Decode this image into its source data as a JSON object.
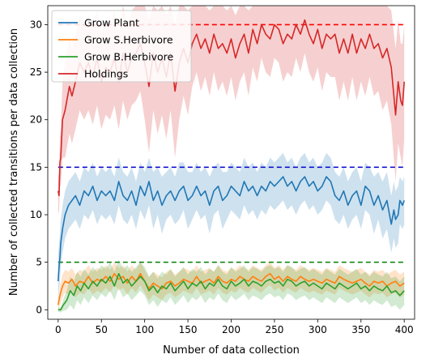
{
  "chart_data": {
    "type": "line",
    "title": "",
    "xlabel": "Number of data collection",
    "ylabel": "Number of collected transitions per data collection",
    "xlim": [
      -12,
      412
    ],
    "ylim": [
      -1,
      32
    ],
    "xticks": [
      0,
      50,
      100,
      150,
      200,
      250,
      300,
      350,
      400
    ],
    "yticks": [
      0,
      5,
      10,
      15,
      20,
      25,
      30
    ],
    "legend_position": "top-left",
    "reference_lines": [
      {
        "y": 30,
        "color": "#ff0000",
        "style": "dashed"
      },
      {
        "y": 15,
        "color": "#0000cc",
        "style": "dashed"
      },
      {
        "y": 5,
        "color": "#008000",
        "style": "dashed"
      }
    ],
    "series": [
      {
        "name": "Grow Plant",
        "color": "#1f77b4",
        "x": [
          0,
          1,
          2,
          3,
          5,
          8,
          12,
          16,
          20,
          25,
          30,
          35,
          40,
          45,
          50,
          55,
          60,
          65,
          70,
          75,
          80,
          85,
          90,
          95,
          100,
          105,
          110,
          115,
          120,
          125,
          130,
          135,
          140,
          145,
          150,
          155,
          160,
          165,
          170,
          175,
          180,
          185,
          190,
          195,
          200,
          205,
          210,
          215,
          220,
          225,
          230,
          235,
          240,
          245,
          250,
          255,
          260,
          265,
          270,
          275,
          280,
          285,
          290,
          295,
          300,
          305,
          310,
          315,
          320,
          325,
          330,
          335,
          340,
          345,
          350,
          355,
          360,
          365,
          370,
          375,
          380,
          383,
          385,
          388,
          390,
          393,
          395,
          398,
          400
        ],
        "y": [
          3.0,
          4.5,
          5.5,
          7.0,
          8.5,
          10.0,
          11.0,
          11.5,
          12.0,
          11.0,
          12.5,
          12.0,
          13.0,
          11.5,
          12.5,
          12.0,
          12.5,
          11.5,
          13.5,
          12.0,
          11.5,
          12.5,
          11.0,
          13.0,
          12.0,
          13.5,
          11.5,
          12.5,
          11.0,
          12.0,
          12.5,
          11.5,
          12.5,
          13.0,
          11.5,
          12.0,
          13.0,
          12.0,
          12.5,
          11.0,
          12.5,
          13.0,
          11.5,
          12.0,
          13.0,
          12.5,
          12.0,
          13.5,
          12.5,
          13.0,
          12.0,
          13.0,
          12.5,
          13.5,
          13.0,
          13.5,
          14.0,
          13.0,
          13.5,
          12.5,
          13.5,
          14.0,
          13.0,
          13.5,
          12.5,
          13.0,
          14.0,
          13.5,
          12.0,
          11.5,
          12.5,
          11.0,
          12.0,
          12.5,
          11.0,
          13.0,
          12.5,
          11.0,
          12.0,
          10.5,
          11.5,
          10.0,
          9.0,
          10.5,
          9.5,
          10.0,
          11.5,
          11.0,
          11.5
        ],
        "band": [
          2.5,
          2.5,
          2.5,
          2.5,
          2.5,
          2.5,
          2.5,
          2.5,
          2.5,
          2.5,
          2.5,
          2.5,
          2.5,
          2.5,
          2.5,
          2.5,
          2.5,
          2.5,
          2.5,
          2.5,
          2.5,
          2.5,
          2.5,
          2.5,
          2.5,
          2.5,
          3.0,
          2.5,
          3.0,
          2.5,
          2.5,
          2.5,
          3.0,
          2.5,
          3.0,
          2.5,
          2.5,
          2.5,
          2.5,
          3.0,
          2.5,
          2.5,
          3.0,
          2.5,
          2.5,
          2.5,
          2.5,
          2.5,
          2.5,
          2.5,
          2.5,
          2.5,
          2.5,
          2.5,
          2.5,
          2.5,
          2.5,
          2.5,
          2.5,
          2.5,
          2.5,
          2.5,
          2.5,
          2.5,
          2.5,
          2.5,
          2.5,
          2.5,
          2.5,
          2.5,
          2.5,
          2.5,
          2.5,
          2.5,
          2.5,
          2.5,
          2.5,
          3.0,
          2.5,
          3.0,
          3.0,
          3.0,
          3.0,
          3.0,
          3.0,
          3.0,
          2.5,
          2.5,
          2.5
        ]
      },
      {
        "name": "Grow S.Herbivore",
        "color": "#ff7f0e",
        "x": [
          0,
          2,
          5,
          8,
          12,
          16,
          20,
          25,
          30,
          35,
          40,
          45,
          50,
          55,
          60,
          65,
          70,
          75,
          80,
          85,
          90,
          95,
          100,
          105,
          110,
          115,
          120,
          125,
          130,
          135,
          140,
          145,
          150,
          155,
          160,
          165,
          170,
          175,
          180,
          185,
          190,
          195,
          200,
          205,
          210,
          215,
          220,
          225,
          230,
          235,
          240,
          245,
          250,
          255,
          260,
          265,
          270,
          275,
          280,
          285,
          290,
          295,
          300,
          305,
          310,
          315,
          320,
          325,
          330,
          335,
          340,
          345,
          350,
          355,
          360,
          365,
          370,
          375,
          380,
          385,
          390,
          395,
          400
        ],
        "y": [
          0.5,
          1.5,
          2.5,
          3.0,
          2.8,
          3.2,
          2.5,
          3.0,
          2.8,
          3.5,
          2.8,
          3.2,
          3.0,
          3.5,
          3.0,
          3.8,
          3.2,
          3.5,
          2.8,
          3.5,
          3.0,
          3.8,
          3.0,
          2.2,
          2.8,
          2.5,
          2.2,
          2.8,
          3.0,
          2.5,
          2.8,
          3.2,
          3.0,
          2.8,
          3.5,
          2.8,
          3.0,
          3.2,
          2.8,
          3.5,
          3.0,
          2.8,
          3.2,
          3.0,
          3.5,
          3.2,
          3.0,
          3.5,
          3.2,
          3.0,
          3.5,
          3.8,
          3.2,
          3.5,
          3.0,
          3.5,
          3.2,
          3.0,
          3.5,
          3.2,
          3.0,
          3.2,
          3.0,
          2.8,
          3.2,
          3.0,
          2.8,
          3.5,
          3.2,
          3.0,
          2.8,
          3.0,
          3.2,
          2.8,
          2.5,
          3.0,
          2.8,
          3.0,
          2.5,
          2.8,
          3.0,
          2.5,
          2.8
        ],
        "band": [
          0.5,
          1.0,
          1.2,
          1.2,
          1.2,
          1.2,
          1.2,
          1.2,
          1.2,
          1.2,
          1.2,
          1.2,
          1.2,
          1.2,
          1.2,
          1.2,
          1.2,
          1.2,
          1.2,
          1.2,
          1.2,
          1.2,
          1.2,
          1.2,
          1.2,
          1.2,
          1.2,
          1.2,
          1.2,
          1.2,
          1.2,
          1.2,
          1.2,
          1.2,
          1.2,
          1.2,
          1.2,
          1.2,
          1.2,
          1.2,
          1.2,
          1.2,
          1.2,
          1.2,
          1.2,
          1.2,
          1.2,
          1.2,
          1.2,
          1.2,
          1.2,
          1.2,
          1.2,
          1.2,
          1.2,
          1.2,
          1.2,
          1.2,
          1.2,
          1.2,
          1.2,
          1.2,
          1.2,
          1.2,
          1.2,
          1.2,
          1.2,
          1.2,
          1.2,
          1.2,
          1.2,
          1.2,
          1.2,
          1.2,
          1.2,
          1.2,
          1.2,
          1.2,
          1.2,
          1.2,
          1.2,
          1.2,
          1.2
        ]
      },
      {
        "name": "Grow B.Herbivore",
        "color": "#2ca02c",
        "x": [
          0,
          3,
          6,
          10,
          14,
          18,
          22,
          26,
          30,
          35,
          40,
          45,
          50,
          55,
          60,
          65,
          70,
          75,
          80,
          85,
          90,
          95,
          100,
          105,
          110,
          115,
          120,
          125,
          130,
          135,
          140,
          145,
          150,
          155,
          160,
          165,
          170,
          175,
          180,
          185,
          190,
          195,
          200,
          205,
          210,
          215,
          220,
          225,
          230,
          235,
          240,
          245,
          250,
          255,
          260,
          265,
          270,
          275,
          280,
          285,
          290,
          295,
          300,
          305,
          310,
          315,
          320,
          325,
          330,
          335,
          340,
          345,
          350,
          355,
          360,
          365,
          370,
          375,
          380,
          385,
          390,
          395,
          400
        ],
        "y": [
          0.0,
          0.0,
          0.5,
          1.0,
          2.0,
          1.5,
          2.5,
          2.0,
          2.8,
          2.2,
          3.0,
          2.5,
          3.2,
          2.8,
          3.5,
          2.5,
          3.8,
          2.8,
          3.2,
          2.5,
          3.0,
          3.5,
          3.0,
          2.0,
          2.5,
          1.8,
          2.5,
          2.2,
          2.8,
          2.0,
          2.5,
          3.0,
          2.2,
          2.8,
          2.5,
          3.0,
          2.2,
          2.8,
          2.5,
          3.2,
          2.5,
          2.2,
          3.0,
          2.5,
          2.8,
          3.2,
          2.5,
          3.0,
          2.8,
          2.5,
          3.0,
          3.2,
          2.8,
          3.0,
          2.5,
          3.2,
          3.0,
          2.5,
          2.8,
          3.0,
          2.5,
          2.8,
          2.5,
          2.2,
          2.8,
          2.5,
          2.2,
          2.8,
          2.5,
          2.2,
          2.5,
          2.8,
          2.2,
          2.5,
          2.0,
          2.5,
          2.2,
          2.0,
          2.5,
          1.8,
          2.0,
          1.5,
          2.0
        ],
        "band": [
          0.2,
          0.3,
          0.6,
          1.0,
          1.5,
          1.5,
          1.5,
          1.5,
          1.5,
          1.5,
          1.5,
          1.5,
          1.5,
          1.5,
          1.5,
          1.5,
          1.5,
          1.5,
          1.5,
          1.5,
          1.5,
          1.5,
          1.5,
          1.5,
          1.5,
          1.5,
          1.5,
          1.5,
          1.5,
          1.5,
          1.5,
          1.5,
          1.5,
          1.5,
          1.5,
          1.5,
          1.5,
          1.5,
          1.5,
          1.5,
          1.5,
          1.5,
          1.5,
          1.5,
          1.5,
          1.5,
          1.5,
          1.5,
          1.5,
          1.5,
          1.5,
          1.5,
          1.5,
          1.5,
          1.5,
          1.5,
          1.5,
          1.5,
          1.5,
          1.5,
          1.5,
          1.5,
          1.5,
          1.5,
          1.5,
          1.5,
          1.5,
          1.5,
          1.5,
          1.5,
          1.5,
          1.5,
          1.5,
          1.5,
          1.5,
          1.5,
          1.5,
          1.5,
          1.5,
          1.5,
          1.5,
          1.5,
          1.5
        ]
      },
      {
        "name": "Holdings",
        "color": "#d62728",
        "x": [
          0,
          1,
          2,
          3,
          5,
          8,
          10,
          13,
          16,
          20,
          25,
          30,
          35,
          40,
          45,
          50,
          55,
          60,
          65,
          70,
          75,
          80,
          85,
          90,
          95,
          100,
          105,
          110,
          115,
          120,
          125,
          130,
          135,
          140,
          145,
          150,
          155,
          160,
          165,
          170,
          175,
          180,
          185,
          190,
          195,
          200,
          205,
          210,
          215,
          220,
          225,
          230,
          235,
          240,
          245,
          250,
          255,
          260,
          265,
          270,
          275,
          280,
          285,
          290,
          295,
          300,
          305,
          310,
          315,
          320,
          325,
          330,
          335,
          340,
          345,
          350,
          355,
          360,
          365,
          370,
          375,
          380,
          385,
          390,
          393,
          396,
          398,
          400
        ],
        "y": [
          12.5,
          12.0,
          15.5,
          16.0,
          20.0,
          21.0,
          22.0,
          23.5,
          22.5,
          24.0,
          26.0,
          25.0,
          26.0,
          24.5,
          26.5,
          24.0,
          25.5,
          25.0,
          26.5,
          24.0,
          27.0,
          25.0,
          26.5,
          27.0,
          28.0,
          26.0,
          23.5,
          27.0,
          25.0,
          26.5,
          24.5,
          27.0,
          23.0,
          26.0,
          27.5,
          26.0,
          28.0,
          29.0,
          27.5,
          28.5,
          27.0,
          29.0,
          27.5,
          28.0,
          27.0,
          28.5,
          26.5,
          28.0,
          29.0,
          27.0,
          29.5,
          28.0,
          30.0,
          29.0,
          28.5,
          30.0,
          29.5,
          28.0,
          29.0,
          28.5,
          30.0,
          29.0,
          30.5,
          29.0,
          28.0,
          29.5,
          27.5,
          29.0,
          28.5,
          29.0,
          27.0,
          28.5,
          27.0,
          29.0,
          27.0,
          28.5,
          27.5,
          29.0,
          27.5,
          28.0,
          26.5,
          27.5,
          25.5,
          20.5,
          24.0,
          22.0,
          21.5,
          24.0
        ],
        "band": [
          2.0,
          2.0,
          2.5,
          3.0,
          4.0,
          5.0,
          5.0,
          5.0,
          5.0,
          5.0,
          5.0,
          5.0,
          5.0,
          5.0,
          5.0,
          5.0,
          5.0,
          5.0,
          5.0,
          5.0,
          5.0,
          5.0,
          5.0,
          5.0,
          5.0,
          6.0,
          7.0,
          6.0,
          6.5,
          6.0,
          6.5,
          6.0,
          7.0,
          6.0,
          5.0,
          5.5,
          4.5,
          4.0,
          4.5,
          4.0,
          4.5,
          4.0,
          4.5,
          4.0,
          4.5,
          4.0,
          4.5,
          4.0,
          4.0,
          4.5,
          4.0,
          4.0,
          3.5,
          4.0,
          4.0,
          3.5,
          3.5,
          4.0,
          4.0,
          4.0,
          3.5,
          4.0,
          3.5,
          4.0,
          4.0,
          4.0,
          4.5,
          4.0,
          4.0,
          4.5,
          5.0,
          4.5,
          5.0,
          4.5,
          5.0,
          4.5,
          5.0,
          4.5,
          5.0,
          5.0,
          5.5,
          5.5,
          6.0,
          7.0,
          6.5,
          6.0,
          6.5,
          6.0
        ]
      }
    ]
  }
}
